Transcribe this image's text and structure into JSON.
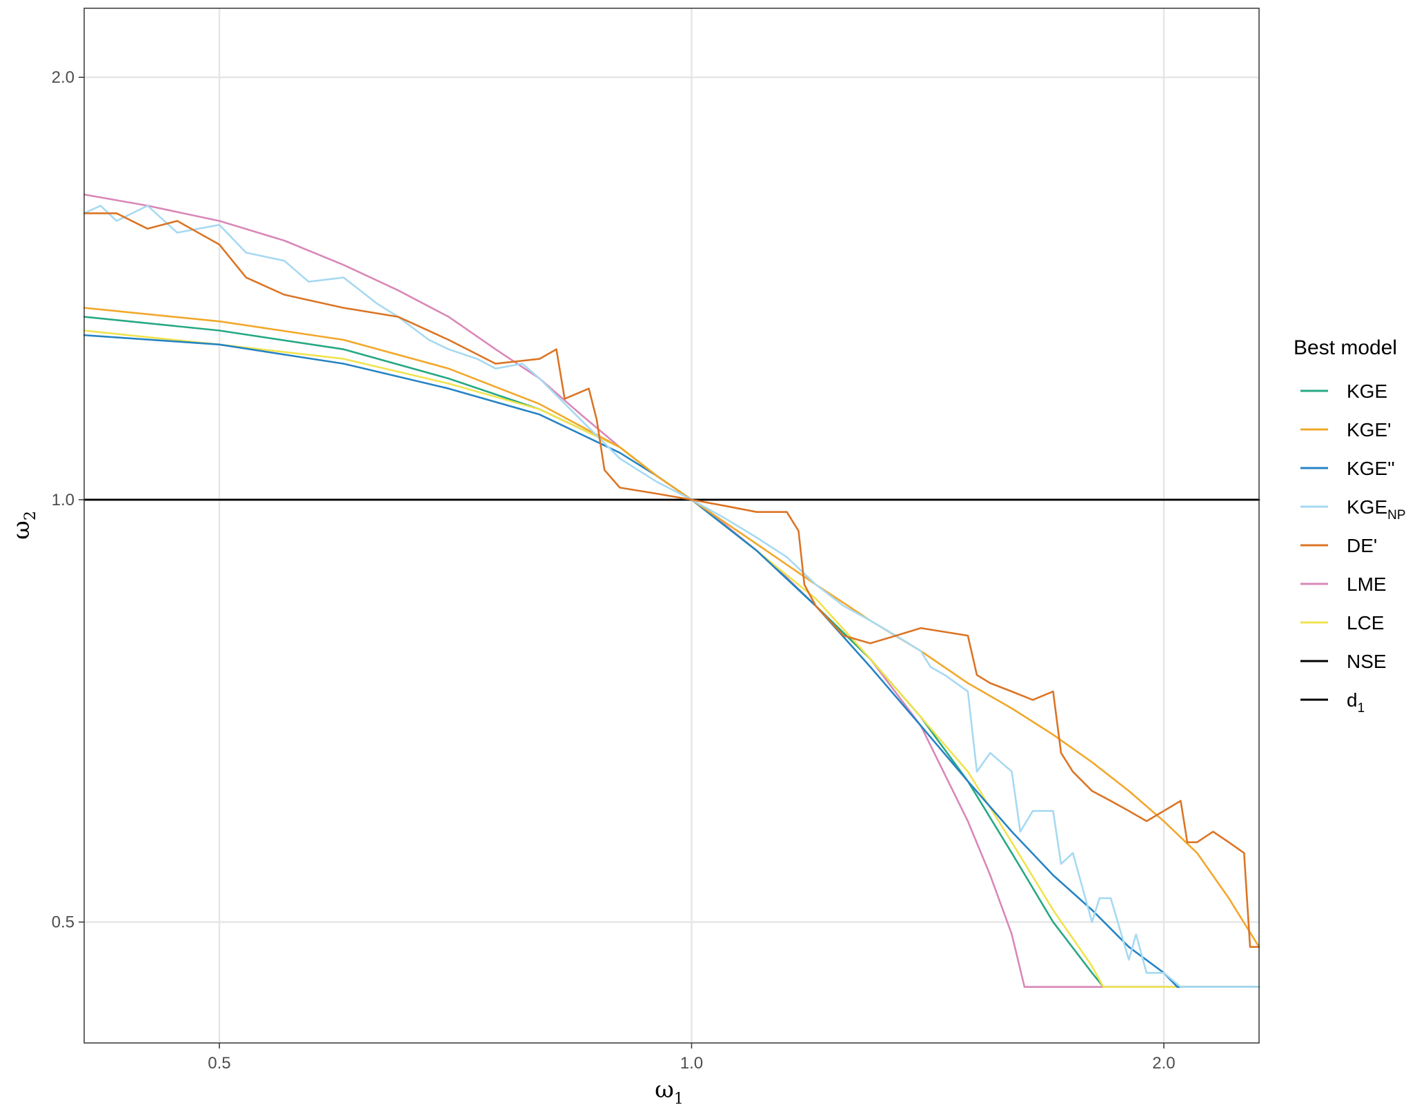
{
  "chart_data": {
    "type": "line",
    "xlabel": "ω",
    "xlabel_sub": "1",
    "ylabel": "ω",
    "ylabel_sub": "2",
    "x_scale": "log",
    "y_scale": "log",
    "xlim": [
      0.41,
      2.3
    ],
    "ylim": [
      0.41,
      2.24
    ],
    "x_ticks": [
      {
        "value": 0.5,
        "label": "0.5"
      },
      {
        "value": 1.0,
        "label": "1.0"
      },
      {
        "value": 2.0,
        "label": "2.0"
      }
    ],
    "y_ticks": [
      {
        "value": 0.5,
        "label": "0.5"
      },
      {
        "value": 1.0,
        "label": "1.0"
      },
      {
        "value": 2.0,
        "label": "2.0"
      }
    ],
    "grid": true,
    "legend": {
      "title": "Best model",
      "placement": "right",
      "entries": [
        {
          "label": "KGE",
          "sub": "",
          "color": "#26a883"
        },
        {
          "label": "KGE'",
          "sub": "",
          "color": "#f2a72a"
        },
        {
          "label": "KGE''",
          "sub": "",
          "color": "#2483c4"
        },
        {
          "label": "KGE",
          "sub": "NP",
          "color": "#a6d9f2"
        },
        {
          "label": "DE'",
          "sub": "",
          "color": "#db7424"
        },
        {
          "label": "LME",
          "sub": "",
          "color": "#d987b8"
        },
        {
          "label": "LCE",
          "sub": "",
          "color": "#f0e34d"
        },
        {
          "label": "NSE",
          "sub": "",
          "color": "#000000"
        },
        {
          "label": "d",
          "sub": "1",
          "color": "#000000"
        }
      ]
    },
    "series": [
      {
        "name": "NSE",
        "color": "#000000",
        "x": [
          0.41,
          2.3
        ],
        "y": [
          1.0,
          1.0
        ]
      },
      {
        "name": "d1",
        "color": "#000000",
        "x": [
          0.41,
          2.3
        ],
        "y": [
          1.0,
          1.0
        ]
      },
      {
        "name": "LME",
        "color": "#d987b8",
        "x": [
          0.41,
          0.45,
          0.5,
          0.55,
          0.6,
          0.65,
          0.7,
          0.75,
          0.8,
          0.85,
          0.9,
          0.95,
          1.0,
          1.05,
          1.1,
          1.15,
          1.2,
          1.3,
          1.4,
          1.5,
          1.55,
          1.6,
          1.63,
          1.7,
          2.0,
          2.3
        ],
        "y": [
          1.65,
          1.62,
          1.58,
          1.53,
          1.47,
          1.41,
          1.35,
          1.28,
          1.22,
          1.15,
          1.09,
          1.04,
          1.0,
          0.96,
          0.92,
          0.88,
          0.84,
          0.77,
          0.69,
          0.59,
          0.54,
          0.49,
          0.4495,
          0.4495,
          0.4495,
          0.4495
        ]
      },
      {
        "name": "KGE",
        "color": "#26a883",
        "x": [
          0.41,
          0.5,
          0.6,
          0.7,
          0.8,
          0.9,
          0.95,
          1.0,
          1.1,
          1.2,
          1.3,
          1.4,
          1.5,
          1.6,
          1.7,
          1.8,
          1.83,
          2.0,
          2.3
        ],
        "y": [
          1.35,
          1.32,
          1.28,
          1.22,
          1.16,
          1.09,
          1.04,
          1.0,
          0.92,
          0.84,
          0.77,
          0.7,
          0.63,
          0.56,
          0.5,
          0.46,
          0.4495,
          0.4495,
          0.4495
        ]
      },
      {
        "name": "LCE",
        "color": "#f0e34d",
        "x": [
          0.41,
          0.5,
          0.6,
          0.7,
          0.8,
          0.9,
          0.95,
          1.0,
          1.1,
          1.2,
          1.3,
          1.4,
          1.5,
          1.6,
          1.7,
          1.8,
          1.83,
          2.0,
          2.3
        ],
        "y": [
          1.32,
          1.29,
          1.26,
          1.21,
          1.16,
          1.09,
          1.04,
          1.0,
          0.92,
          0.85,
          0.77,
          0.7,
          0.64,
          0.57,
          0.51,
          0.465,
          0.4495,
          0.4495,
          0.4495
        ]
      },
      {
        "name": "KGE''",
        "color": "#2483c4",
        "x": [
          0.41,
          0.5,
          0.6,
          0.7,
          0.8,
          0.9,
          0.95,
          1.0,
          1.1,
          1.2,
          1.3,
          1.4,
          1.5,
          1.6,
          1.7,
          1.8,
          1.9,
          2.0,
          2.04,
          2.3
        ],
        "y": [
          1.31,
          1.29,
          1.25,
          1.2,
          1.15,
          1.08,
          1.04,
          1.0,
          0.92,
          0.84,
          0.76,
          0.69,
          0.63,
          0.58,
          0.54,
          0.51,
          0.48,
          0.46,
          0.4495,
          0.4495
        ]
      },
      {
        "name": "KGE'",
        "color": "#f2a72a",
        "x": [
          0.41,
          0.5,
          0.6,
          0.7,
          0.8,
          0.9,
          0.95,
          1.0,
          1.1,
          1.2,
          1.3,
          1.4,
          1.5,
          1.6,
          1.7,
          1.8,
          1.9,
          2.0,
          2.1,
          2.2,
          2.3
        ],
        "y": [
          1.37,
          1.34,
          1.3,
          1.24,
          1.17,
          1.09,
          1.04,
          1.0,
          0.93,
          0.87,
          0.82,
          0.78,
          0.74,
          0.71,
          0.68,
          0.65,
          0.62,
          0.59,
          0.56,
          0.52,
          0.48
        ]
      },
      {
        "name": "KGE_NP",
        "color": "#a6d9f2",
        "x": [
          0.41,
          0.42,
          0.43,
          0.45,
          0.47,
          0.5,
          0.52,
          0.55,
          0.57,
          0.6,
          0.63,
          0.65,
          0.68,
          0.7,
          0.73,
          0.75,
          0.78,
          0.8,
          0.85,
          0.9,
          0.95,
          1.0,
          1.05,
          1.1,
          1.15,
          1.2,
          1.25,
          1.3,
          1.35,
          1.4,
          1.42,
          1.45,
          1.5,
          1.52,
          1.55,
          1.6,
          1.62,
          1.65,
          1.7,
          1.72,
          1.75,
          1.8,
          1.82,
          1.85,
          1.9,
          1.92,
          1.95,
          2.0,
          2.05,
          2.1,
          2.15,
          2.2,
          2.3
        ],
        "y": [
          1.6,
          1.62,
          1.58,
          1.62,
          1.55,
          1.57,
          1.5,
          1.48,
          1.43,
          1.44,
          1.38,
          1.35,
          1.3,
          1.28,
          1.26,
          1.24,
          1.25,
          1.22,
          1.14,
          1.07,
          1.03,
          1.0,
          0.97,
          0.94,
          0.91,
          0.87,
          0.84,
          0.82,
          0.8,
          0.78,
          0.76,
          0.75,
          0.73,
          0.64,
          0.66,
          0.64,
          0.58,
          0.6,
          0.6,
          0.55,
          0.56,
          0.5,
          0.52,
          0.52,
          0.47,
          0.49,
          0.46,
          0.46,
          0.4495,
          0.4495,
          0.4495,
          0.4495,
          0.4495
        ]
      },
      {
        "name": "DE'",
        "color": "#db7424",
        "x": [
          0.41,
          0.43,
          0.45,
          0.47,
          0.5,
          0.52,
          0.55,
          0.6,
          0.65,
          0.7,
          0.75,
          0.8,
          0.82,
          0.83,
          0.86,
          0.87,
          0.88,
          0.9,
          0.95,
          1.0,
          1.05,
          1.1,
          1.15,
          1.17,
          1.18,
          1.2,
          1.25,
          1.3,
          1.35,
          1.4,
          1.5,
          1.52,
          1.55,
          1.6,
          1.65,
          1.7,
          1.72,
          1.75,
          1.8,
          1.85,
          1.9,
          1.95,
          2.0,
          2.05,
          2.07,
          2.1,
          2.15,
          2.2,
          2.25,
          2.27,
          2.3
        ],
        "y": [
          1.6,
          1.6,
          1.56,
          1.58,
          1.52,
          1.44,
          1.4,
          1.37,
          1.35,
          1.3,
          1.25,
          1.26,
          1.28,
          1.18,
          1.2,
          1.14,
          1.05,
          1.02,
          1.01,
          1.0,
          0.99,
          0.98,
          0.98,
          0.95,
          0.87,
          0.84,
          0.8,
          0.79,
          0.8,
          0.81,
          0.8,
          0.75,
          0.74,
          0.73,
          0.72,
          0.73,
          0.66,
          0.64,
          0.62,
          0.61,
          0.6,
          0.59,
          0.6,
          0.61,
          0.57,
          0.57,
          0.58,
          0.57,
          0.56,
          0.48,
          0.48
        ]
      }
    ]
  }
}
